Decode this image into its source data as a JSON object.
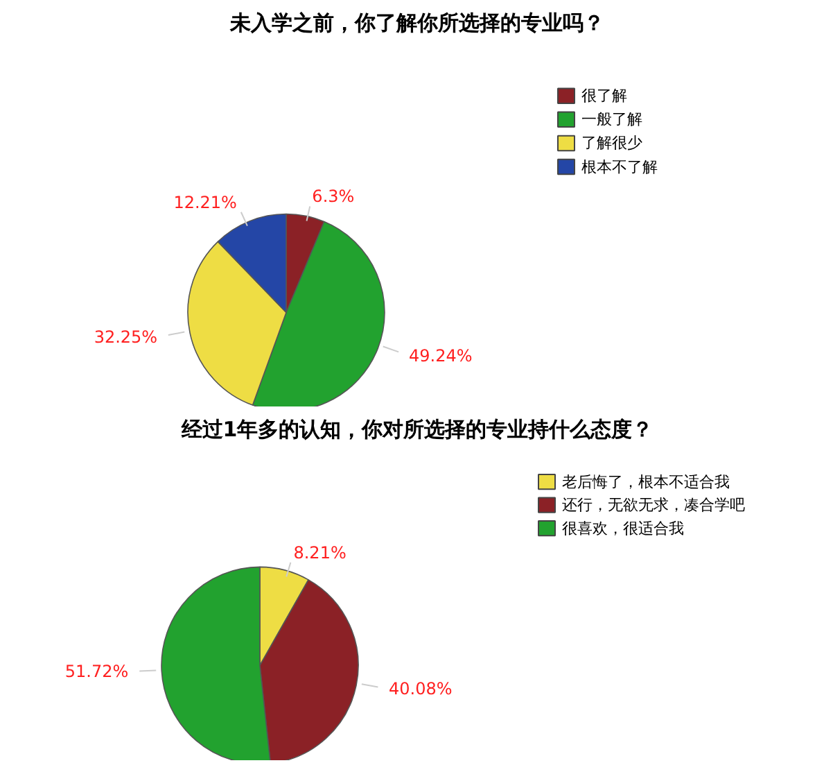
{
  "chart_data": [
    {
      "type": "pie",
      "title": "未入学之前，你了解你所选择的专业吗？",
      "categories": [
        "很了解",
        "一般了解",
        "了解很少",
        "根本不了解"
      ],
      "values": [
        6.3,
        49.24,
        32.25,
        12.21
      ],
      "colors": [
        "#8b2126",
        "#22a22f",
        "#eedd44",
        "#2446a6"
      ],
      "value_labels": [
        "6.3%",
        "49.24%",
        "32.25%",
        "12.21%"
      ],
      "legend": "top right"
    },
    {
      "type": "pie",
      "title": "经过1年多的认知，你对所选择的专业持什么态度？",
      "categories": [
        "老后悔了，根本不适合我",
        "还行，无欲无求，凑合学吧",
        "很喜欢，很适合我"
      ],
      "values": [
        8.21,
        40.08,
        51.72
      ],
      "colors": [
        "#eedd44",
        "#8b2126",
        "#22a22f"
      ],
      "value_labels": [
        "8.21%",
        "40.08%",
        "51.72%"
      ],
      "legend": "top right"
    }
  ]
}
